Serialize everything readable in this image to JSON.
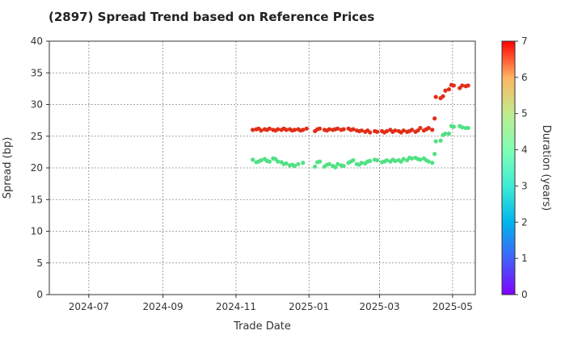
{
  "chart_data": {
    "type": "scatter",
    "title": "(2897)   Spread Trend based on Reference Prices",
    "xlabel": "Trade Date",
    "ylabel": "Spread (bp)",
    "xlim": [
      "2024-05-29",
      "2025-05-20"
    ],
    "ylim": [
      0,
      40
    ],
    "x_ticks": [
      "2024-07-01",
      "2024-09-01",
      "2024-11-01",
      "2025-01-01",
      "2025-03-01",
      "2025-05-01"
    ],
    "x_tick_labels": [
      "2024-07",
      "2024-09",
      "2024-11",
      "2025-01",
      "2025-03",
      "2025-05"
    ],
    "y_ticks": [
      0,
      5,
      10,
      15,
      20,
      25,
      30,
      35,
      40
    ],
    "y_tick_labels": [
      "0",
      "5",
      "10",
      "15",
      "20",
      "25",
      "30",
      "35",
      "40"
    ],
    "grid": true,
    "colorbar": {
      "label": "Duration (years)",
      "min": 0,
      "max": 7,
      "ticks": [
        0,
        1,
        2,
        3,
        4,
        5,
        6,
        7
      ],
      "tick_labels": [
        "0",
        "1",
        "2",
        "3",
        "4",
        "5",
        "6",
        "7"
      ],
      "colormap": "rainbow"
    },
    "series": [
      {
        "duration": 6.6,
        "points": [
          {
            "x": "2024-11-15",
            "y": 26.0
          },
          {
            "x": "2024-11-18",
            "y": 26.1
          },
          {
            "x": "2024-11-20",
            "y": 26.2
          },
          {
            "x": "2024-11-22",
            "y": 25.9
          },
          {
            "x": "2024-11-25",
            "y": 26.1
          },
          {
            "x": "2024-11-27",
            "y": 26.0
          },
          {
            "x": "2024-11-29",
            "y": 26.2
          },
          {
            "x": "2024-12-02",
            "y": 26.0
          },
          {
            "x": "2024-12-04",
            "y": 25.9
          },
          {
            "x": "2024-12-06",
            "y": 26.1
          },
          {
            "x": "2024-12-09",
            "y": 26.0
          },
          {
            "x": "2024-12-11",
            "y": 26.2
          },
          {
            "x": "2024-12-13",
            "y": 26.0
          },
          {
            "x": "2024-12-16",
            "y": 26.1
          },
          {
            "x": "2024-12-18",
            "y": 25.9
          },
          {
            "x": "2024-12-20",
            "y": 26.0
          },
          {
            "x": "2024-12-23",
            "y": 26.1
          },
          {
            "x": "2024-12-25",
            "y": 25.9
          },
          {
            "x": "2024-12-27",
            "y": 26.0
          },
          {
            "x": "2024-12-30",
            "y": 26.2
          },
          {
            "x": "2025-01-06",
            "y": 25.8
          },
          {
            "x": "2025-01-08",
            "y": 26.1
          },
          {
            "x": "2025-01-10",
            "y": 26.2
          },
          {
            "x": "2025-01-14",
            "y": 26.0
          },
          {
            "x": "2025-01-16",
            "y": 25.9
          },
          {
            "x": "2025-01-18",
            "y": 26.1
          },
          {
            "x": "2025-01-21",
            "y": 26.0
          },
          {
            "x": "2025-01-23",
            "y": 26.1
          },
          {
            "x": "2025-01-25",
            "y": 26.2
          },
          {
            "x": "2025-01-28",
            "y": 26.0
          },
          {
            "x": "2025-01-30",
            "y": 26.1
          },
          {
            "x": "2025-02-03",
            "y": 26.2
          },
          {
            "x": "2025-02-05",
            "y": 26.0
          },
          {
            "x": "2025-02-07",
            "y": 26.1
          },
          {
            "x": "2025-02-10",
            "y": 25.9
          },
          {
            "x": "2025-02-12",
            "y": 25.8
          },
          {
            "x": "2025-02-14",
            "y": 25.9
          },
          {
            "x": "2025-02-17",
            "y": 25.7
          },
          {
            "x": "2025-02-19",
            "y": 25.9
          },
          {
            "x": "2025-02-21",
            "y": 25.6
          },
          {
            "x": "2025-02-25",
            "y": 25.8
          },
          {
            "x": "2025-02-27",
            "y": 25.7
          },
          {
            "x": "2025-03-03",
            "y": 25.8
          },
          {
            "x": "2025-03-05",
            "y": 25.6
          },
          {
            "x": "2025-03-07",
            "y": 25.8
          },
          {
            "x": "2025-03-10",
            "y": 26.0
          },
          {
            "x": "2025-03-12",
            "y": 25.7
          },
          {
            "x": "2025-03-14",
            "y": 25.9
          },
          {
            "x": "2025-03-17",
            "y": 25.8
          },
          {
            "x": "2025-03-19",
            "y": 25.6
          },
          {
            "x": "2025-03-21",
            "y": 25.9
          },
          {
            "x": "2025-03-24",
            "y": 25.7
          },
          {
            "x": "2025-03-26",
            "y": 25.8
          },
          {
            "x": "2025-03-28",
            "y": 26.0
          },
          {
            "x": "2025-03-31",
            "y": 25.7
          },
          {
            "x": "2025-04-02",
            "y": 25.9
          },
          {
            "x": "2025-04-04",
            "y": 26.3
          },
          {
            "x": "2025-04-07",
            "y": 25.9
          },
          {
            "x": "2025-04-09",
            "y": 26.1
          },
          {
            "x": "2025-04-11",
            "y": 26.3
          },
          {
            "x": "2025-04-14",
            "y": 26.0
          },
          {
            "x": "2025-04-16",
            "y": 27.8
          },
          {
            "x": "2025-04-17",
            "y": 31.2
          },
          {
            "x": "2025-04-21",
            "y": 31.0
          },
          {
            "x": "2025-04-23",
            "y": 31.3
          },
          {
            "x": "2025-04-25",
            "y": 32.2
          },
          {
            "x": "2025-04-28",
            "y": 32.4
          },
          {
            "x": "2025-04-30",
            "y": 33.1
          },
          {
            "x": "2025-05-02",
            "y": 33.0
          },
          {
            "x": "2025-05-07",
            "y": 32.6
          },
          {
            "x": "2025-05-09",
            "y": 33.0
          },
          {
            "x": "2025-05-12",
            "y": 32.9
          },
          {
            "x": "2025-05-14",
            "y": 33.0
          }
        ]
      },
      {
        "duration": 4.6,
        "points": [
          {
            "x": "2024-11-15",
            "y": 21.3
          },
          {
            "x": "2024-11-18",
            "y": 20.9
          },
          {
            "x": "2024-11-20",
            "y": 21.0
          },
          {
            "x": "2024-11-22",
            "y": 21.2
          },
          {
            "x": "2024-11-25",
            "y": 21.4
          },
          {
            "x": "2024-11-27",
            "y": 21.1
          },
          {
            "x": "2024-11-29",
            "y": 21.0
          },
          {
            "x": "2024-12-02",
            "y": 21.5
          },
          {
            "x": "2024-12-04",
            "y": 21.4
          },
          {
            "x": "2024-12-06",
            "y": 21.0
          },
          {
            "x": "2024-12-09",
            "y": 20.9
          },
          {
            "x": "2024-12-11",
            "y": 20.6
          },
          {
            "x": "2024-12-13",
            "y": 20.7
          },
          {
            "x": "2024-12-16",
            "y": 20.4
          },
          {
            "x": "2024-12-18",
            "y": 20.5
          },
          {
            "x": "2024-12-20",
            "y": 20.3
          },
          {
            "x": "2024-12-23",
            "y": 20.6
          },
          {
            "x": "2024-12-27",
            "y": 20.8
          },
          {
            "x": "2025-01-06",
            "y": 20.2
          },
          {
            "x": "2025-01-08",
            "y": 20.9
          },
          {
            "x": "2025-01-10",
            "y": 21.0
          },
          {
            "x": "2025-01-14",
            "y": 20.2
          },
          {
            "x": "2025-01-16",
            "y": 20.5
          },
          {
            "x": "2025-01-18",
            "y": 20.6
          },
          {
            "x": "2025-01-21",
            "y": 20.3
          },
          {
            "x": "2025-01-23",
            "y": 20.1
          },
          {
            "x": "2025-01-25",
            "y": 20.6
          },
          {
            "x": "2025-01-28",
            "y": 20.4
          },
          {
            "x": "2025-01-30",
            "y": 20.3
          },
          {
            "x": "2025-02-03",
            "y": 20.8
          },
          {
            "x": "2025-02-05",
            "y": 21.0
          },
          {
            "x": "2025-02-07",
            "y": 21.2
          },
          {
            "x": "2025-02-10",
            "y": 20.6
          },
          {
            "x": "2025-02-12",
            "y": 20.5
          },
          {
            "x": "2025-02-14",
            "y": 20.8
          },
          {
            "x": "2025-02-17",
            "y": 20.7
          },
          {
            "x": "2025-02-19",
            "y": 21.0
          },
          {
            "x": "2025-02-21",
            "y": 21.1
          },
          {
            "x": "2025-02-25",
            "y": 21.3
          },
          {
            "x": "2025-02-27",
            "y": 21.2
          },
          {
            "x": "2025-03-03",
            "y": 20.9
          },
          {
            "x": "2025-03-05",
            "y": 21.0
          },
          {
            "x": "2025-03-07",
            "y": 21.2
          },
          {
            "x": "2025-03-10",
            "y": 21.0
          },
          {
            "x": "2025-03-12",
            "y": 21.3
          },
          {
            "x": "2025-03-14",
            "y": 21.1
          },
          {
            "x": "2025-03-17",
            "y": 21.2
          },
          {
            "x": "2025-03-19",
            "y": 21.0
          },
          {
            "x": "2025-03-21",
            "y": 21.4
          },
          {
            "x": "2025-03-24",
            "y": 21.2
          },
          {
            "x": "2025-03-26",
            "y": 21.6
          },
          {
            "x": "2025-03-28",
            "y": 21.5
          },
          {
            "x": "2025-03-31",
            "y": 21.6
          },
          {
            "x": "2025-04-02",
            "y": 21.4
          },
          {
            "x": "2025-04-04",
            "y": 21.3
          },
          {
            "x": "2025-04-07",
            "y": 21.5
          },
          {
            "x": "2025-04-09",
            "y": 21.2
          },
          {
            "x": "2025-04-11",
            "y": 21.0
          },
          {
            "x": "2025-04-14",
            "y": 20.8
          },
          {
            "x": "2025-04-16",
            "y": 22.2
          },
          {
            "x": "2025-04-17",
            "y": 24.2
          },
          {
            "x": "2025-04-21",
            "y": 24.3
          },
          {
            "x": "2025-04-23",
            "y": 25.2
          },
          {
            "x": "2025-04-25",
            "y": 25.4
          },
          {
            "x": "2025-04-28",
            "y": 25.4
          },
          {
            "x": "2025-04-30",
            "y": 26.6
          },
          {
            "x": "2025-05-02",
            "y": 26.5
          },
          {
            "x": "2025-05-07",
            "y": 26.6
          },
          {
            "x": "2025-05-09",
            "y": 26.4
          },
          {
            "x": "2025-05-12",
            "y": 26.3
          },
          {
            "x": "2025-05-14",
            "y": 26.3
          }
        ]
      }
    ]
  }
}
